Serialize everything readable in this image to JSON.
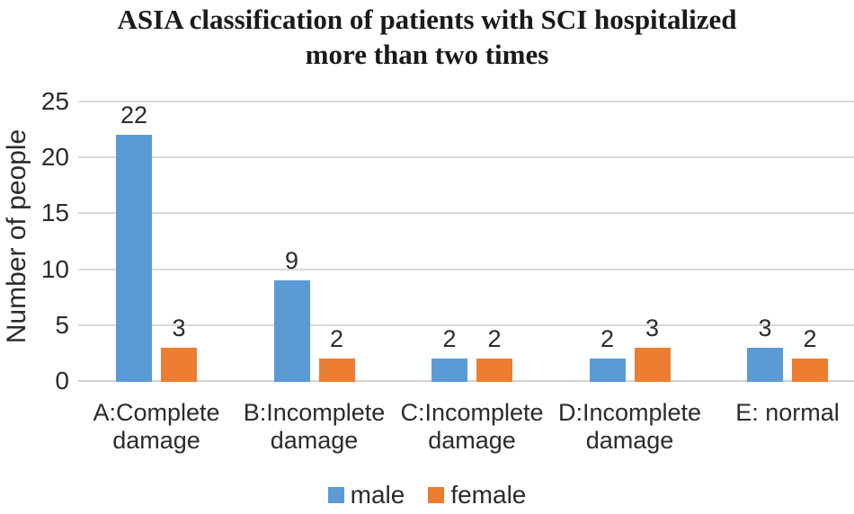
{
  "title": {
    "line1": "ASIA classification of patients with SCI hospitalized",
    "line2": "more than two times"
  },
  "y_axis": {
    "label": "Number of people",
    "ticks": [
      0,
      5,
      10,
      15,
      20,
      25
    ]
  },
  "x_labels_wrapped": [
    "A:Complete\ndamage",
    "B:Incomplete\ndamage",
    "C:Incomplete\ndamage",
    "D:Incomplete\ndamage",
    "E: normal"
  ],
  "colors": {
    "male": "#5B9BD5",
    "female": "#ED7D31",
    "gridline": "#D9D9D9",
    "text": "#2B2B2B"
  },
  "chart_data": {
    "type": "bar",
    "title": "ASIA classification of patients with SCI hospitalized more than two times",
    "categories": [
      "A:Complete damage",
      "B:Incomplete damage",
      "C:Incomplete damage",
      "D:Incomplete damage",
      "E: normal"
    ],
    "series": [
      {
        "name": "male",
        "color": "#5B9BD5",
        "values": [
          22,
          9,
          2,
          2,
          3
        ]
      },
      {
        "name": "female",
        "color": "#ED7D31",
        "values": [
          3,
          2,
          2,
          3,
          2
        ]
      }
    ],
    "xlabel": "",
    "ylabel": "Number of people",
    "ylim": [
      0,
      25
    ],
    "yticks": [
      0,
      5,
      10,
      15,
      20,
      25
    ],
    "grid": true,
    "data_labels": true,
    "legend_position": "bottom"
  }
}
